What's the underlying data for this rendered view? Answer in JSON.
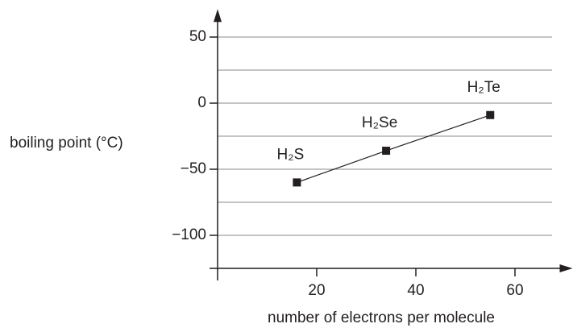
{
  "chart_data": {
    "type": "line",
    "ylabel": "boiling point (°C)",
    "xlabel": "number of electrons per molecule",
    "x": [
      16,
      34,
      55
    ],
    "series": [
      {
        "values": [
          -60,
          -36,
          -9
        ],
        "color": "#231f20",
        "point_labels": [
          "H₂S",
          "H₂Se",
          "H₂Te"
        ]
      }
    ],
    "xlim": [
      0,
      70
    ],
    "xticks": [
      20,
      40,
      60
    ],
    "ylim": [
      -125,
      70
    ],
    "yticks": [
      50,
      0,
      {
        "value": -50,
        "label": "−50"
      },
      {
        "value": -100,
        "label": "−100"
      }
    ],
    "ygrid": [
      50,
      25,
      0,
      -25,
      -50,
      -75,
      -100
    ],
    "grid": true
  }
}
